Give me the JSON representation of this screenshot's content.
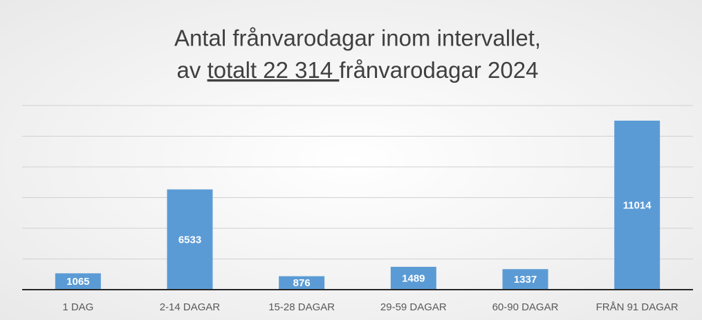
{
  "chart_data": {
    "type": "bar",
    "title": {
      "line1": "Antal frånvarodagar inom intervallet,",
      "line2": [
        "av ",
        "totalt 22 314 ",
        "frånvarodagar 2024"
      ]
    },
    "categories": [
      "1 DAG",
      "2-14 DAGAR",
      "15-28 DAGAR",
      "29-59 DAGAR",
      "60-90 DAGAR",
      "FRÅN 91 DAGAR"
    ],
    "values": [
      1065,
      6533,
      876,
      1489,
      1337,
      11014
    ],
    "color": "#5b9bd5",
    "ylim": [
      0,
      12000
    ],
    "yticks": [
      0,
      2000,
      4000,
      6000,
      8000,
      10000,
      12000
    ],
    "grid": true
  }
}
